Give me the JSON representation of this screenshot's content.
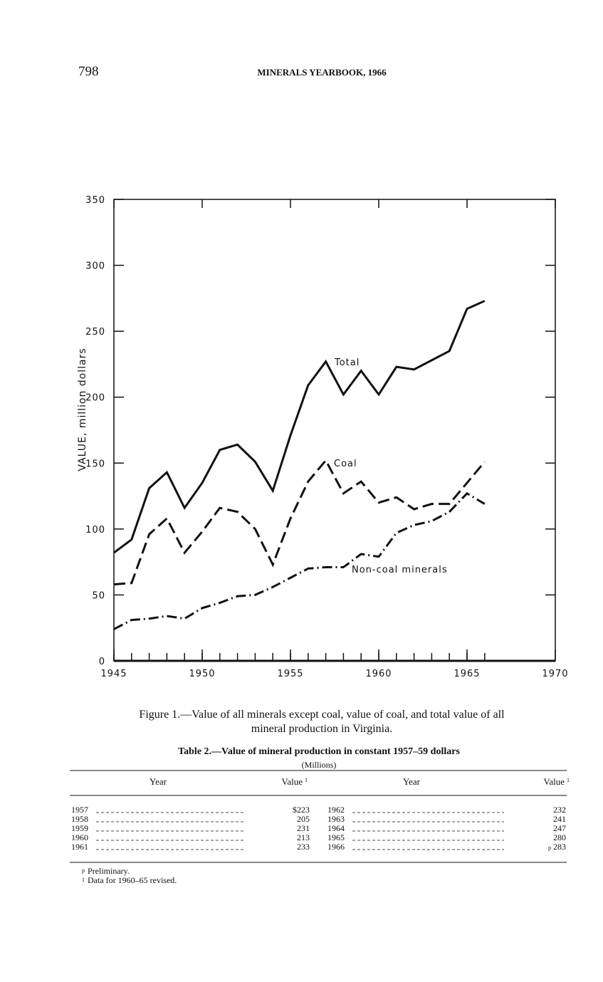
{
  "header": {
    "page_number": "798",
    "title": "MINERALS YEARBOOK, 1966"
  },
  "chart_data": {
    "type": "line",
    "y_label": "VALUE, million dollars",
    "x": [
      1945,
      1946,
      1947,
      1948,
      1949,
      1950,
      1951,
      1952,
      1953,
      1954,
      1955,
      1956,
      1957,
      1958,
      1959,
      1960,
      1961,
      1962,
      1963,
      1964,
      1965,
      1966
    ],
    "series": [
      {
        "name": "Total",
        "color": "#111111",
        "style": "solid",
        "values": [
          82,
          92,
          131,
          143,
          116,
          135,
          160,
          164,
          151,
          129,
          171,
          209,
          227,
          202,
          220,
          202,
          223,
          221,
          228,
          235,
          267,
          273
        ]
      },
      {
        "name": "Coal",
        "color": "#111111",
        "style": "dashed",
        "values": [
          58,
          59,
          96,
          108,
          82,
          98,
          116,
          113,
          100,
          73,
          108,
          136,
          152,
          127,
          136,
          120,
          124,
          115,
          119,
          119,
          135,
          151
        ]
      },
      {
        "name": "Non-coal minerals",
        "color": "#111111",
        "style": "dashdot",
        "values": [
          24,
          31,
          32,
          34,
          32,
          40,
          44,
          49,
          50,
          56,
          63,
          70,
          71,
          71,
          81,
          79,
          97,
          103,
          106,
          113,
          127,
          119
        ]
      }
    ],
    "xlim": [
      1945,
      1970
    ],
    "xticks": [
      1945,
      1950,
      1955,
      1960,
      1965,
      1970
    ],
    "ylim": [
      0,
      350
    ],
    "yticks": [
      0,
      50,
      100,
      150,
      200,
      250,
      300,
      350
    ],
    "grid": false
  },
  "caption": [
    "Figure 1.—Value of all minerals except coal, value of coal, and total value of all",
    "mineral production in Virginia."
  ],
  "table": {
    "title": "Table 2.—Value of mineral production in constant 1957–59 dollars",
    "subtitle": "(Millions)",
    "header": [
      {
        "text": "Year"
      },
      {
        "text": "Value",
        "note": "1"
      },
      {
        "text": "Year"
      },
      {
        "text": "Value",
        "note": "1"
      }
    ],
    "left": [
      {
        "year": "1957",
        "value": "$223"
      },
      {
        "year": "1958",
        "value": "205"
      },
      {
        "year": "1959",
        "value": "231"
      },
      {
        "year": "1960",
        "value": "213"
      },
      {
        "year": "1961",
        "value": "233"
      }
    ],
    "right": [
      {
        "year": "1962",
        "value": "232"
      },
      {
        "year": "1963",
        "value": "241"
      },
      {
        "year": "1964",
        "value": "247"
      },
      {
        "year": "1965",
        "value": "280"
      },
      {
        "year": "1966",
        "value": "283",
        "note": "p"
      }
    ],
    "footnotes": [
      {
        "mark": "p",
        "text": "Preliminary."
      },
      {
        "mark": "1",
        "text": "Data for 1960–65 revised."
      }
    ]
  }
}
